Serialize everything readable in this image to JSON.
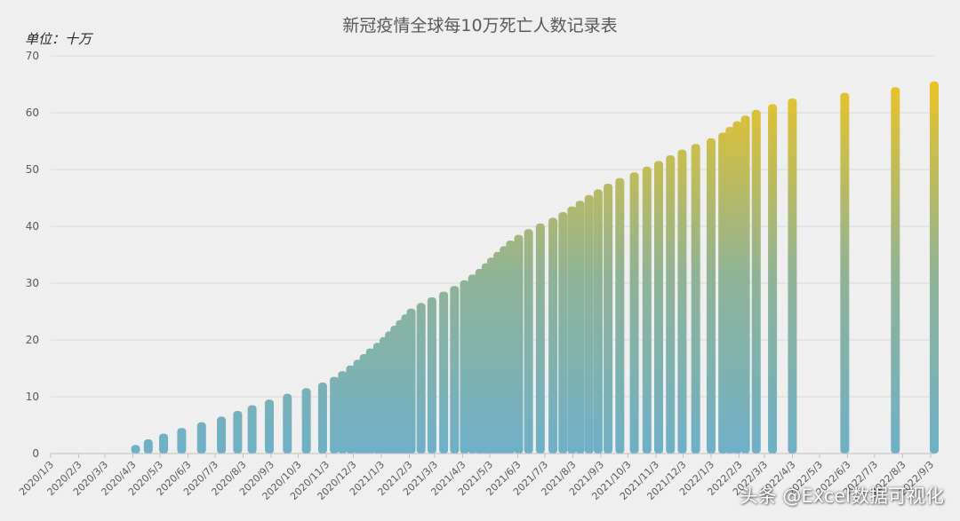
{
  "chart_data": {
    "type": "bar",
    "title": "新冠疫情全球每10万死亡人数记录表",
    "unit_label": "单位：十万",
    "ylim": [
      0,
      70
    ],
    "yticks": [
      0,
      10,
      20,
      30,
      40,
      50,
      60,
      70
    ],
    "grid": true,
    "legend": "none",
    "gradient_colors": {
      "bottom": "#6fb0c8",
      "top": "#f5c518"
    },
    "date_range": [
      "2020/1/3",
      "2022/9/8"
    ],
    "xtick_labels": [
      "2020/1/3",
      "2020/2/3",
      "2020/3/3",
      "2020/4/3",
      "2020/5/3",
      "2020/6/3",
      "2020/7/3",
      "2020/8/3",
      "2020/9/3",
      "2020/10/3",
      "2020/11/3",
      "2020/12/3",
      "2021/1/3",
      "2021/2/3",
      "2021/3/3",
      "2021/4/3",
      "2021/5/3",
      "2021/6/3",
      "2021/7/3",
      "2021/8/3",
      "2021/9/3",
      "2021/10/3",
      "2021/11/3",
      "2021/12/3",
      "2022/1/3",
      "2022/2/3",
      "2022/3/3",
      "2022/4/3",
      "2022/5/3",
      "2022/6/3",
      "2022/7/3",
      "2022/8/3",
      "2022/9/3"
    ],
    "points": [
      {
        "x": "2020/4/6",
        "y": 1.5
      },
      {
        "x": "2020/4/20",
        "y": 2.5
      },
      {
        "x": "2020/5/7",
        "y": 3.5
      },
      {
        "x": "2020/5/27",
        "y": 4.5
      },
      {
        "x": "2020/6/18",
        "y": 5.5
      },
      {
        "x": "2020/7/10",
        "y": 6.5
      },
      {
        "x": "2020/7/28",
        "y": 7.5
      },
      {
        "x": "2020/8/13",
        "y": 8.5
      },
      {
        "x": "2020/9/1",
        "y": 9.5
      },
      {
        "x": "2020/9/21",
        "y": 10.5
      },
      {
        "x": "2020/10/12",
        "y": 11.5
      },
      {
        "x": "2020/10/30",
        "y": 12.5
      },
      {
        "x": "2020/11/12",
        "y": 13.5
      },
      {
        "x": "2020/11/21",
        "y": 14.5
      },
      {
        "x": "2020/11/30",
        "y": 15.5
      },
      {
        "x": "2020/12/8",
        "y": 16.5
      },
      {
        "x": "2020/12/15",
        "y": 17.5
      },
      {
        "x": "2020/12/22",
        "y": 18.5
      },
      {
        "x": "2020/12/30",
        "y": 19.5
      },
      {
        "x": "2021/1/6",
        "y": 20.5
      },
      {
        "x": "2021/1/12",
        "y": 21.5
      },
      {
        "x": "2021/1/18",
        "y": 22.5
      },
      {
        "x": "2021/1/24",
        "y": 23.5
      },
      {
        "x": "2021/1/30",
        "y": 24.5
      },
      {
        "x": "2021/2/5",
        "y": 25.5
      },
      {
        "x": "2021/2/16",
        "y": 26.5
      },
      {
        "x": "2021/2/28",
        "y": 27.5
      },
      {
        "x": "2021/3/13",
        "y": 28.5
      },
      {
        "x": "2021/3/25",
        "y": 29.5
      },
      {
        "x": "2021/4/5",
        "y": 30.5
      },
      {
        "x": "2021/4/14",
        "y": 31.5
      },
      {
        "x": "2021/4/22",
        "y": 32.5
      },
      {
        "x": "2021/4/29",
        "y": 33.5
      },
      {
        "x": "2021/5/5",
        "y": 34.5
      },
      {
        "x": "2021/5/12",
        "y": 35.5
      },
      {
        "x": "2021/5/19",
        "y": 36.5
      },
      {
        "x": "2021/5/26",
        "y": 37.5
      },
      {
        "x": "2021/6/4",
        "y": 38.5
      },
      {
        "x": "2021/6/15",
        "y": 39.5
      },
      {
        "x": "2021/6/28",
        "y": 40.5
      },
      {
        "x": "2021/7/12",
        "y": 41.5
      },
      {
        "x": "2021/7/23",
        "y": 42.5
      },
      {
        "x": "2021/8/2",
        "y": 43.5
      },
      {
        "x": "2021/8/11",
        "y": 44.5
      },
      {
        "x": "2021/8/21",
        "y": 45.5
      },
      {
        "x": "2021/8/31",
        "y": 46.5
      },
      {
        "x": "2021/9/11",
        "y": 47.5
      },
      {
        "x": "2021/9/24",
        "y": 48.5
      },
      {
        "x": "2021/10/10",
        "y": 49.5
      },
      {
        "x": "2021/10/24",
        "y": 50.5
      },
      {
        "x": "2021/11/6",
        "y": 51.5
      },
      {
        "x": "2021/11/19",
        "y": 52.5
      },
      {
        "x": "2021/12/2",
        "y": 53.5
      },
      {
        "x": "2021/12/17",
        "y": 54.5
      },
      {
        "x": "2022/1/3",
        "y": 55.5
      },
      {
        "x": "2022/1/16",
        "y": 56.5
      },
      {
        "x": "2022/1/24",
        "y": 57.5
      },
      {
        "x": "2022/2/1",
        "y": 58.5
      },
      {
        "x": "2022/2/10",
        "y": 59.5
      },
      {
        "x": "2022/2/22",
        "y": 60.5
      },
      {
        "x": "2022/3/12",
        "y": 61.5
      },
      {
        "x": "2022/4/3",
        "y": 62.5
      },
      {
        "x": "2022/5/31",
        "y": 63.5
      },
      {
        "x": "2022/7/26",
        "y": 64.5
      },
      {
        "x": "2022/9/7",
        "y": 65.5
      }
    ]
  },
  "watermark": "头条 @Excel数据可视化"
}
